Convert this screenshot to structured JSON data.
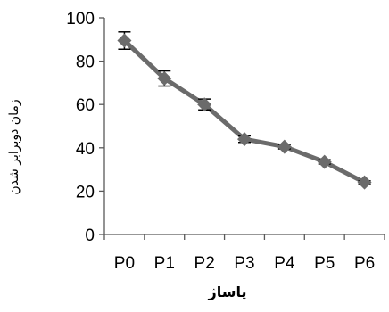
{
  "chart_data": {
    "type": "line",
    "categories": [
      "P0",
      "P1",
      "P2",
      "P3",
      "P4",
      "P5",
      "P6"
    ],
    "series": [
      {
        "values": [
          89.5,
          72,
          60,
          44,
          40.5,
          33.5,
          24
        ],
        "error": [
          4,
          3.5,
          2.5,
          1.5,
          1,
          1,
          0.8
        ]
      }
    ],
    "xlabel": "پاساژ",
    "ylabel": "زمان دوبرابر شدن",
    "ylim": [
      0,
      100
    ],
    "yticks": [
      0,
      20,
      40,
      60,
      80,
      100
    ],
    "grid": false,
    "legend": "none",
    "colors": {
      "line": "#6b6b6b",
      "marker": "#6b6b6b",
      "axis": "#595959",
      "error": "#000000"
    }
  }
}
